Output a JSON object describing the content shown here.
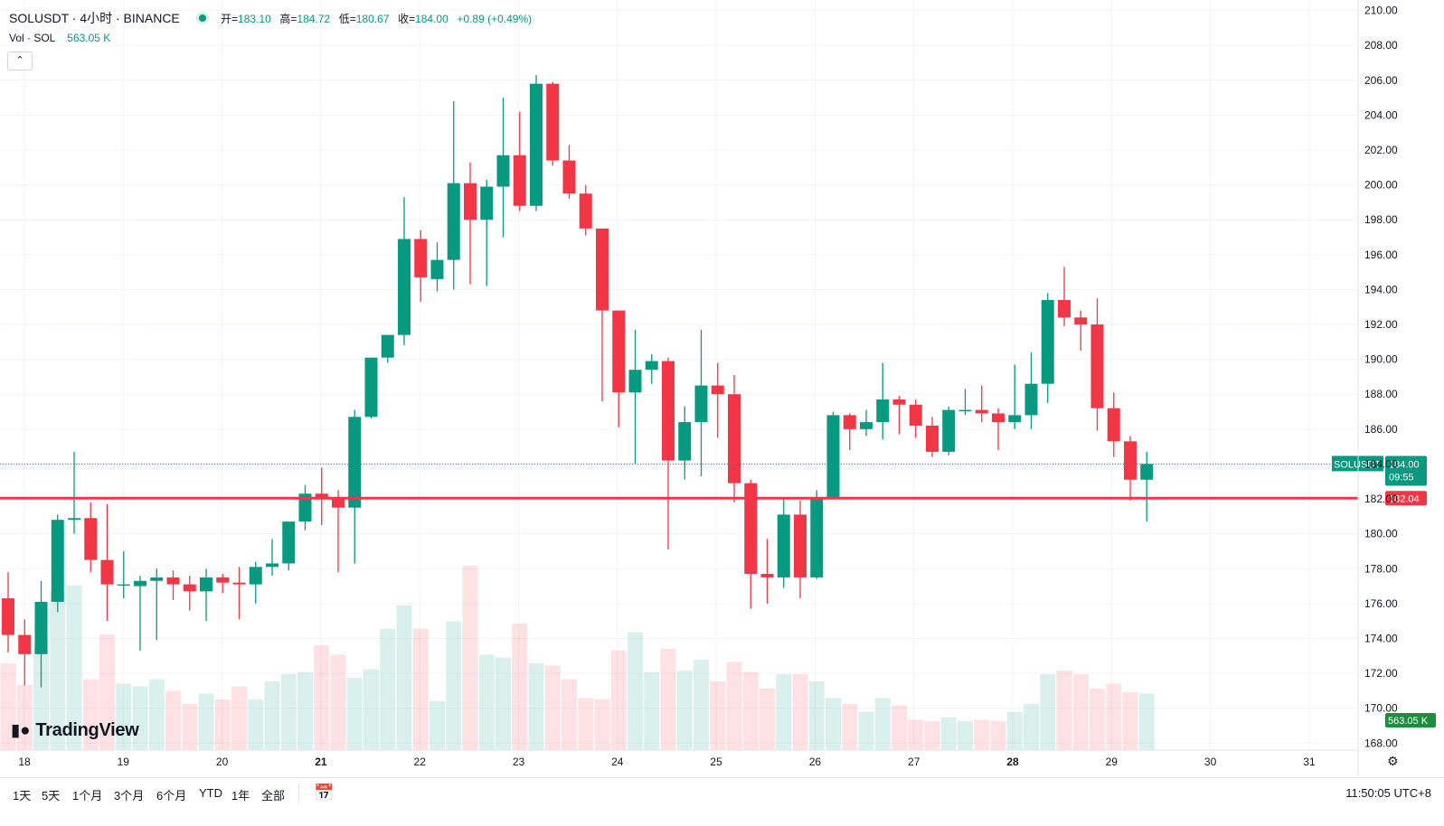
{
  "header": {
    "symbol_line": "SOLUSDT · 4小时 · BINANCE",
    "ohlc": [
      {
        "label": "开=",
        "value": "183.10"
      },
      {
        "label": "高=",
        "value": "184.72"
      },
      {
        "label": "低=",
        "value": "180.67"
      },
      {
        "label": "收=",
        "value": "184.00"
      }
    ],
    "change": "+0.89 (+0.49%)",
    "volume_label": "Vol · SOL",
    "volume_value": "563.05 K",
    "collapse_icon": "chevron-up-icon"
  },
  "brand": "TradingView",
  "toolbar": {
    "ranges": [
      "1天",
      "5天",
      "1个月",
      "3个月",
      "6个月",
      "YTD",
      "1年",
      "全部"
    ],
    "calendar_icon": "calendar-icon",
    "clock": "11:50:05 UTC+8",
    "settings_icon": "gear-icon"
  },
  "chart_data": {
    "type": "candlestick",
    "symbol": "SOLUSDT",
    "interval": "4小时",
    "exchange": "BINANCE",
    "x_ticks": [
      "18",
      "19",
      "20",
      "21",
      "22",
      "23",
      "24",
      "25",
      "26",
      "27",
      "28",
      "29",
      "30",
      "31"
    ],
    "y_ticks": [
      "168.00",
      "170.00",
      "172.00",
      "174.00",
      "176.00",
      "178.00",
      "180.00",
      "182.00",
      "184.00",
      "186.00",
      "188.00",
      "190.00",
      "192.00",
      "194.00",
      "196.00",
      "198.00",
      "200.00",
      "202.00",
      "204.00",
      "206.00",
      "208.00",
      "210.00"
    ],
    "ylim": [
      167.6,
      210.6
    ],
    "price_line": {
      "label": "SOLUSDT",
      "value": 184.0,
      "value_text": "184.00",
      "countdown": "09:55"
    },
    "horizontal_line": {
      "value": 182.04,
      "value_text": "182.04",
      "color": "#f23645"
    },
    "volume_tag": "563.05 K",
    "colors": {
      "up": "#089981",
      "down": "#f23645"
    },
    "candles": [
      {
        "o": 176.3,
        "h": 177.8,
        "l": 173.2,
        "c": 174.2
      },
      {
        "o": 174.2,
        "h": 175.1,
        "l": 171.3,
        "c": 173.1
      },
      {
        "o": 173.1,
        "h": 177.3,
        "l": 171.2,
        "c": 176.1
      },
      {
        "o": 176.1,
        "h": 181.1,
        "l": 175.5,
        "c": 180.8
      },
      {
        "o": 180.8,
        "h": 184.7,
        "l": 180.0,
        "c": 180.9
      },
      {
        "o": 180.9,
        "h": 181.8,
        "l": 177.8,
        "c": 178.5
      },
      {
        "o": 178.5,
        "h": 181.7,
        "l": 175.0,
        "c": 177.1
      },
      {
        "o": 177.1,
        "h": 179.0,
        "l": 176.3,
        "c": 177.1
      },
      {
        "o": 177.0,
        "h": 177.6,
        "l": 173.3,
        "c": 177.3
      },
      {
        "o": 177.3,
        "h": 178.0,
        "l": 173.9,
        "c": 177.5
      },
      {
        "o": 177.5,
        "h": 177.9,
        "l": 176.2,
        "c": 177.1
      },
      {
        "o": 177.1,
        "h": 177.6,
        "l": 175.6,
        "c": 176.7
      },
      {
        "o": 176.7,
        "h": 178.0,
        "l": 175.0,
        "c": 177.5
      },
      {
        "o": 177.5,
        "h": 177.7,
        "l": 176.6,
        "c": 177.2
      },
      {
        "o": 177.2,
        "h": 178.1,
        "l": 175.1,
        "c": 177.1
      },
      {
        "o": 177.1,
        "h": 178.4,
        "l": 176.0,
        "c": 178.1
      },
      {
        "o": 178.1,
        "h": 179.7,
        "l": 177.6,
        "c": 178.3
      },
      {
        "o": 178.3,
        "h": 180.6,
        "l": 177.9,
        "c": 180.7
      },
      {
        "o": 180.7,
        "h": 182.8,
        "l": 180.2,
        "c": 182.3
      },
      {
        "o": 182.3,
        "h": 183.8,
        "l": 180.5,
        "c": 182.1
      },
      {
        "o": 182.0,
        "h": 182.5,
        "l": 177.8,
        "c": 181.5
      },
      {
        "o": 181.5,
        "h": 187.1,
        "l": 178.3,
        "c": 186.7
      },
      {
        "o": 186.7,
        "h": 190.1,
        "l": 186.6,
        "c": 190.1
      },
      {
        "o": 190.1,
        "h": 191.2,
        "l": 189.8,
        "c": 191.4
      },
      {
        "o": 191.4,
        "h": 199.3,
        "l": 190.8,
        "c": 196.9
      },
      {
        "o": 196.9,
        "h": 197.4,
        "l": 193.3,
        "c": 194.7
      },
      {
        "o": 194.6,
        "h": 196.7,
        "l": 193.9,
        "c": 195.7
      },
      {
        "o": 195.7,
        "h": 204.8,
        "l": 194.0,
        "c": 200.1
      },
      {
        "o": 200.1,
        "h": 201.3,
        "l": 194.3,
        "c": 198.0
      },
      {
        "o": 198.0,
        "h": 200.3,
        "l": 194.2,
        "c": 199.9
      },
      {
        "o": 199.9,
        "h": 205.0,
        "l": 197.0,
        "c": 201.7
      },
      {
        "o": 201.7,
        "h": 204.2,
        "l": 198.5,
        "c": 198.8
      },
      {
        "o": 198.8,
        "h": 206.3,
        "l": 198.5,
        "c": 205.8
      },
      {
        "o": 205.8,
        "h": 205.9,
        "l": 201.1,
        "c": 201.4
      },
      {
        "o": 201.4,
        "h": 202.3,
        "l": 199.2,
        "c": 199.5
      },
      {
        "o": 199.5,
        "h": 200.0,
        "l": 197.1,
        "c": 197.5
      },
      {
        "o": 197.5,
        "h": 197.5,
        "l": 187.6,
        "c": 192.8
      },
      {
        "o": 192.8,
        "h": 192.7,
        "l": 186.1,
        "c": 188.1
      },
      {
        "o": 188.1,
        "h": 191.7,
        "l": 184.0,
        "c": 189.4
      },
      {
        "o": 189.4,
        "h": 190.3,
        "l": 188.6,
        "c": 189.9
      },
      {
        "o": 189.9,
        "h": 190.1,
        "l": 179.1,
        "c": 184.2
      },
      {
        "o": 184.2,
        "h": 187.3,
        "l": 183.1,
        "c": 186.4
      },
      {
        "o": 186.4,
        "h": 191.7,
        "l": 183.3,
        "c": 188.5
      },
      {
        "o": 188.5,
        "h": 189.8,
        "l": 185.5,
        "c": 188.0
      },
      {
        "o": 188.0,
        "h": 189.1,
        "l": 181.8,
        "c": 182.9
      },
      {
        "o": 182.9,
        "h": 183.1,
        "l": 175.7,
        "c": 177.7
      },
      {
        "o": 177.7,
        "h": 179.7,
        "l": 176.0,
        "c": 177.5
      },
      {
        "o": 177.5,
        "h": 182.0,
        "l": 176.9,
        "c": 181.1
      },
      {
        "o": 181.1,
        "h": 181.9,
        "l": 176.3,
        "c": 177.5
      },
      {
        "o": 177.5,
        "h": 182.5,
        "l": 177.4,
        "c": 182.1
      },
      {
        "o": 182.1,
        "h": 187.0,
        "l": 182.0,
        "c": 186.8
      },
      {
        "o": 186.8,
        "h": 186.9,
        "l": 184.8,
        "c": 186.0
      },
      {
        "o": 186.0,
        "h": 187.1,
        "l": 185.6,
        "c": 186.4
      },
      {
        "o": 186.4,
        "h": 189.8,
        "l": 185.4,
        "c": 187.7
      },
      {
        "o": 187.7,
        "h": 187.9,
        "l": 185.7,
        "c": 187.4
      },
      {
        "o": 187.4,
        "h": 187.7,
        "l": 185.5,
        "c": 186.2
      },
      {
        "o": 186.2,
        "h": 186.7,
        "l": 184.4,
        "c": 184.7
      },
      {
        "o": 184.7,
        "h": 187.3,
        "l": 184.5,
        "c": 187.1
      },
      {
        "o": 187.1,
        "h": 188.3,
        "l": 186.8,
        "c": 187.1
      },
      {
        "o": 187.1,
        "h": 188.5,
        "l": 186.4,
        "c": 186.9
      },
      {
        "o": 186.9,
        "h": 187.2,
        "l": 184.8,
        "c": 186.4
      },
      {
        "o": 186.4,
        "h": 189.7,
        "l": 186.0,
        "c": 186.8
      },
      {
        "o": 186.8,
        "h": 190.4,
        "l": 186.0,
        "c": 188.6
      },
      {
        "o": 188.6,
        "h": 193.8,
        "l": 187.5,
        "c": 193.4
      },
      {
        "o": 193.4,
        "h": 195.3,
        "l": 191.9,
        "c": 192.4
      },
      {
        "o": 192.4,
        "h": 192.8,
        "l": 190.5,
        "c": 192.0
      },
      {
        "o": 192.0,
        "h": 193.5,
        "l": 185.9,
        "c": 187.2
      },
      {
        "o": 187.2,
        "h": 188.1,
        "l": 184.4,
        "c": 185.3
      },
      {
        "o": 185.3,
        "h": 185.6,
        "l": 181.9,
        "c": 183.1
      },
      {
        "o": 183.1,
        "h": 184.7,
        "l": 180.7,
        "c": 184.0
      }
    ],
    "volume": [
      120,
      90,
      145,
      220,
      228,
      98,
      160,
      92,
      88,
      98,
      82,
      64,
      78,
      70,
      88,
      70,
      95,
      105,
      108,
      145,
      132,
      100,
      112,
      168,
      200,
      168,
      68,
      178,
      255,
      132,
      128,
      175,
      120,
      117,
      98,
      72,
      70,
      138,
      163,
      108,
      140,
      110,
      125,
      95,
      122,
      108,
      85,
      105,
      105,
      95,
      72,
      64,
      53,
      72,
      62,
      42,
      40,
      45,
      40,
      42,
      40,
      53,
      64,
      105,
      110,
      105,
      85,
      92,
      80,
      78
    ],
    "volume_max": 260
  }
}
